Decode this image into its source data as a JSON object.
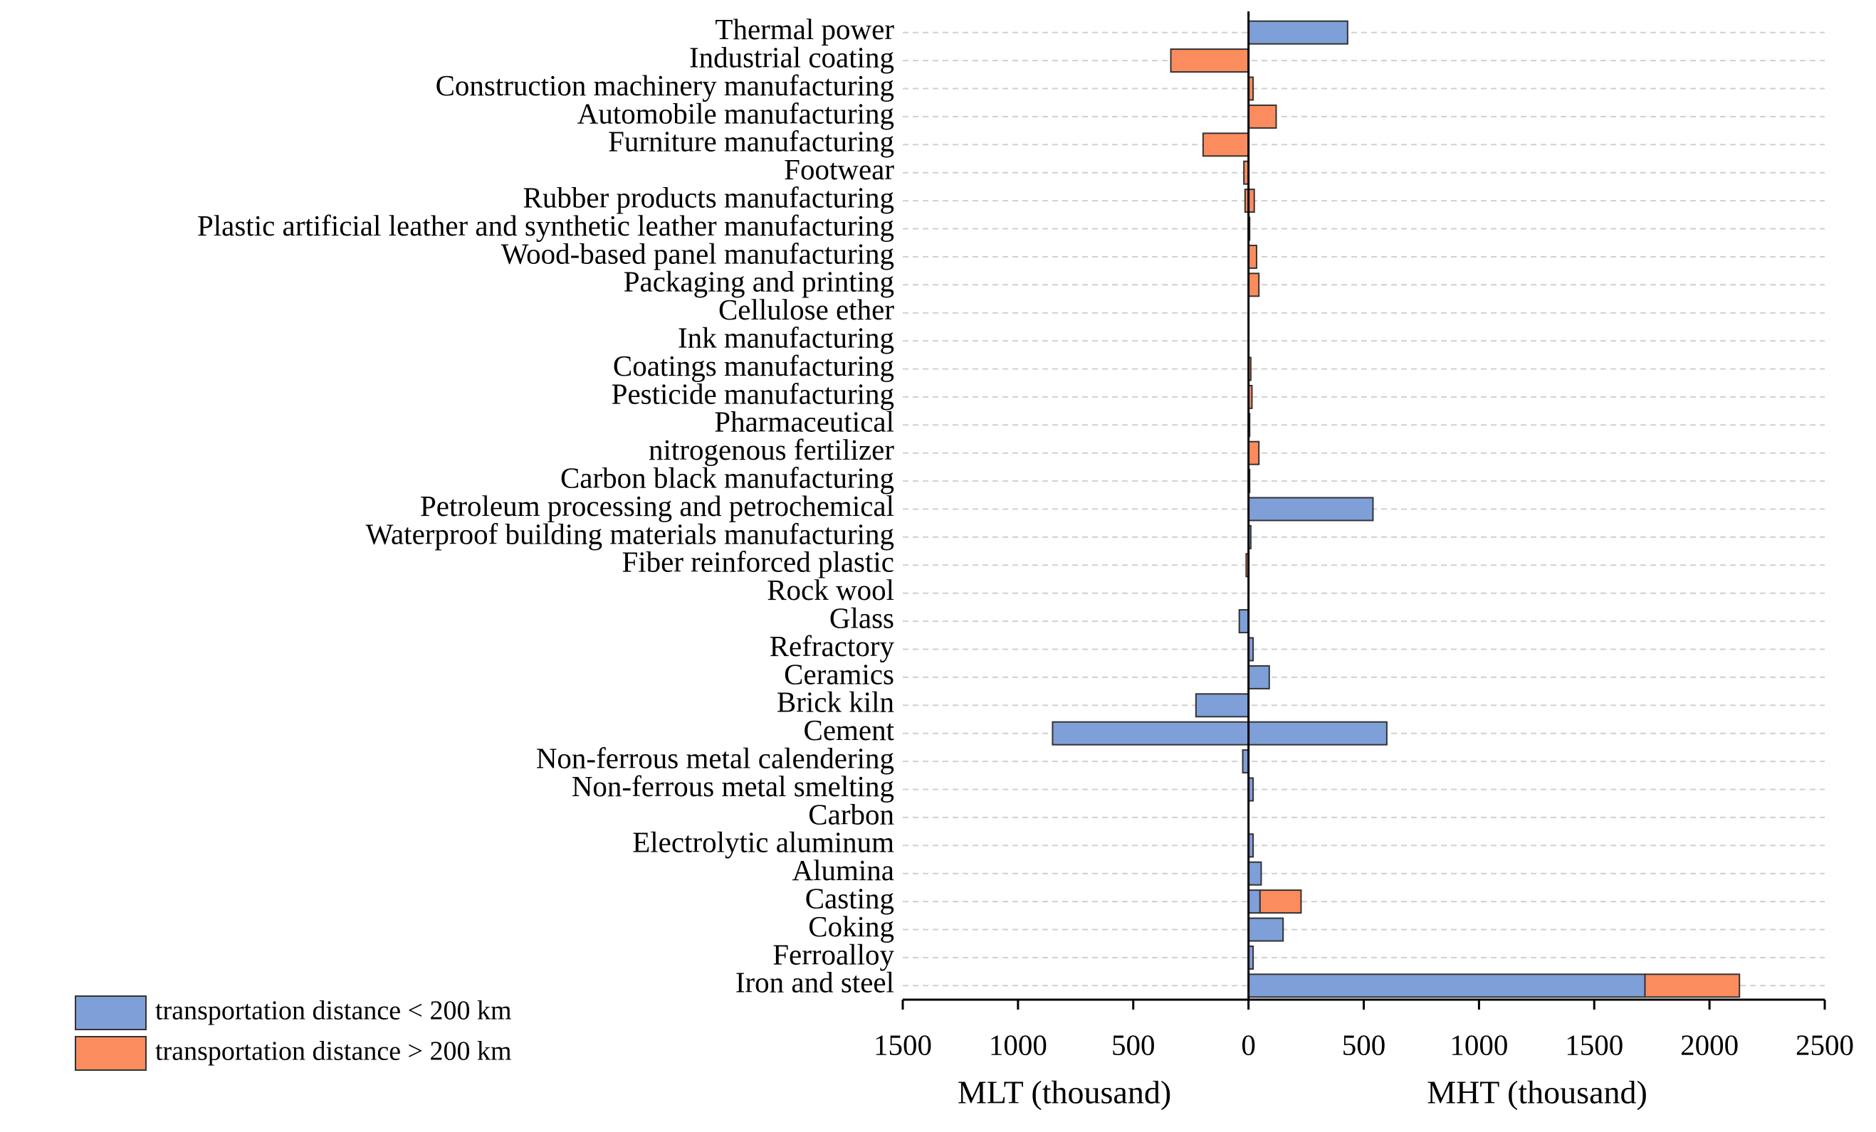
{
  "chart_data": {
    "type": "diverging_bar",
    "categories": [
      "Thermal power",
      "Industrial coating",
      "Construction machinery manufacturing",
      "Automobile manufacturing",
      "Furniture manufacturing",
      "Footwear",
      "Rubber products manufacturing",
      "Plastic artificial leather and synthetic leather manufacturing",
      "Wood-based panel manufacturing",
      "Packaging and printing",
      "Cellulose ether",
      "Ink manufacturing",
      "Coatings manufacturing",
      "Pesticide manufacturing",
      "Pharmaceutical",
      "nitrogenous fertilizer",
      "Carbon black manufacturing",
      "Petroleum processing and petrochemical",
      "Waterproof building materials manufacturing",
      "Fiber reinforced plastic",
      "Rock wool",
      "Glass",
      "Refractory",
      "Ceramics",
      "Brick kiln",
      "Cement",
      "Non-ferrous metal calendering",
      "Non-ferrous metal smelting",
      "Carbon",
      "Electrolytic aluminum",
      "Alumina",
      "Casting",
      "Coking",
      "Ferroalloy",
      "Iron and steel"
    ],
    "series": [
      {
        "name": "transportation distance < 200 km",
        "color": "#7f9fd8",
        "values": [
          430,
          0,
          0,
          0,
          0,
          0,
          0,
          0,
          0,
          0,
          0,
          0,
          0,
          0,
          5,
          0,
          5,
          540,
          10,
          0,
          0,
          0,
          20,
          90,
          0,
          600,
          0,
          20,
          0,
          20,
          55,
          50,
          150,
          20,
          1720
        ],
        "mlt_values": [
          0,
          0,
          0,
          0,
          0,
          0,
          0,
          0,
          0,
          0,
          0,
          0,
          0,
          0,
          0,
          0,
          0,
          0,
          0,
          0,
          0,
          -40,
          0,
          0,
          -228,
          -850,
          -25,
          0,
          0,
          0,
          0,
          0,
          0,
          0,
          0
        ]
      },
      {
        "name": "transportation distance > 200 km",
        "color": "#fb8c5e",
        "values": [
          0,
          0,
          20,
          120,
          0,
          0,
          25,
          5,
          35,
          45,
          0,
          0,
          10,
          15,
          0,
          45,
          0,
          0,
          0,
          0,
          0,
          0,
          0,
          0,
          0,
          0,
          0,
          0,
          0,
          0,
          0,
          178,
          0,
          0,
          410
        ],
        "mlt_values": [
          0,
          -337,
          0,
          0,
          -197,
          -20,
          -15,
          0,
          0,
          0,
          0,
          0,
          0,
          0,
          0,
          0,
          0,
          0,
          0,
          -10,
          0,
          0,
          0,
          0,
          0,
          0,
          0,
          0,
          0,
          0,
          0,
          0,
          0,
          0,
          0
        ]
      }
    ],
    "xlim": [
      -1500,
      2500
    ],
    "xticks": [
      {
        "value": -1500,
        "label": "1500"
      },
      {
        "value": -1000,
        "label": "1000"
      },
      {
        "value": -500,
        "label": "500"
      },
      0,
      500,
      1000,
      1500,
      2000,
      2500
    ],
    "xlabel_left": "MLT (thousand)",
    "xlabel_right": "MHT (thousand)",
    "grid": true,
    "legend": "lower left"
  }
}
